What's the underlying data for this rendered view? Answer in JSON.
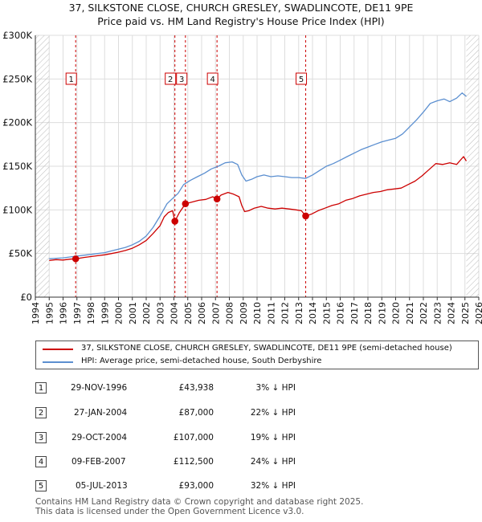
{
  "title_line1": "37, SILKSTONE CLOSE, CHURCH GRESLEY, SWADLINCOTE, DE11 9PE",
  "title_line2": "Price paid vs. HM Land Registry's House Price Index (HPI)",
  "chart_data": {
    "type": "line",
    "x_range": [
      1994,
      2026
    ],
    "ylim": [
      0,
      300000
    ],
    "y_ticks": [
      {
        "value": 0,
        "label": "£0"
      },
      {
        "value": 50000,
        "label": "£50K"
      },
      {
        "value": 100000,
        "label": "£100K"
      },
      {
        "value": 150000,
        "label": "£150K"
      },
      {
        "value": 200000,
        "label": "£200K"
      },
      {
        "value": 250000,
        "label": "£250K"
      },
      {
        "value": 300000,
        "label": "£300K"
      }
    ],
    "x_ticks": [
      "1994",
      "1995",
      "1996",
      "1997",
      "1998",
      "1999",
      "2000",
      "2001",
      "2002",
      "2003",
      "2004",
      "2005",
      "2006",
      "2007",
      "2008",
      "2009",
      "2010",
      "2011",
      "2012",
      "2013",
      "2014",
      "2015",
      "2016",
      "2017",
      "2018",
      "2019",
      "2020",
      "2021",
      "2022",
      "2023",
      "2024",
      "2025",
      "2026"
    ],
    "data_end": 2025.1,
    "series": [
      {
        "name": "37, SILKSTONE CLOSE, CHURCH GRESLEY, SWADLINCOTE, DE11 9PE (semi-detached house)",
        "color": "#cc0000",
        "points": [
          [
            1995.0,
            42000
          ],
          [
            1995.5,
            43000
          ],
          [
            1996.0,
            42500
          ],
          [
            1996.5,
            43500
          ],
          [
            1996.91,
            43938
          ],
          [
            1997.5,
            45500
          ],
          [
            1998.0,
            46500
          ],
          [
            1998.5,
            47500
          ],
          [
            1999.0,
            48500
          ],
          [
            1999.5,
            50000
          ],
          [
            2000.0,
            51500
          ],
          [
            2000.5,
            53500
          ],
          [
            2001.0,
            56000
          ],
          [
            2001.5,
            60000
          ],
          [
            2002.0,
            65000
          ],
          [
            2002.5,
            73000
          ],
          [
            2003.0,
            82000
          ],
          [
            2003.3,
            92000
          ],
          [
            2003.6,
            97000
          ],
          [
            2003.9,
            99000
          ],
          [
            2004.07,
            87000
          ],
          [
            2004.4,
            97000
          ],
          [
            2004.83,
            107000
          ],
          [
            2005.3,
            109000
          ],
          [
            2005.8,
            111000
          ],
          [
            2006.3,
            112000
          ],
          [
            2006.8,
            115000
          ],
          [
            2007.11,
            112500
          ],
          [
            2007.4,
            117000
          ],
          [
            2007.9,
            120000
          ],
          [
            2008.3,
            118000
          ],
          [
            2008.7,
            115000
          ],
          [
            2008.9,
            105000
          ],
          [
            2009.1,
            98000
          ],
          [
            2009.4,
            99000
          ],
          [
            2009.8,
            102000
          ],
          [
            2010.3,
            104000
          ],
          [
            2010.8,
            102000
          ],
          [
            2011.3,
            101000
          ],
          [
            2011.8,
            102000
          ],
          [
            2012.3,
            101000
          ],
          [
            2012.8,
            100000
          ],
          [
            2013.2,
            99000
          ],
          [
            2013.51,
            93000
          ],
          [
            2013.9,
            95000
          ],
          [
            2014.4,
            99000
          ],
          [
            2014.9,
            102000
          ],
          [
            2015.4,
            105000
          ],
          [
            2015.9,
            107000
          ],
          [
            2016.4,
            111000
          ],
          [
            2016.9,
            113000
          ],
          [
            2017.4,
            116000
          ],
          [
            2017.9,
            118000
          ],
          [
            2018.4,
            120000
          ],
          [
            2018.9,
            121000
          ],
          [
            2019.4,
            123000
          ],
          [
            2019.9,
            124000
          ],
          [
            2020.4,
            125000
          ],
          [
            2020.9,
            129000
          ],
          [
            2021.4,
            133000
          ],
          [
            2021.9,
            139000
          ],
          [
            2022.4,
            146000
          ],
          [
            2022.9,
            153000
          ],
          [
            2023.4,
            152000
          ],
          [
            2023.9,
            154000
          ],
          [
            2024.4,
            152000
          ],
          [
            2024.9,
            161000
          ],
          [
            2025.1,
            156000
          ]
        ]
      },
      {
        "name": "HPI: Average price, semi-detached house, South Derbyshire",
        "color": "#5b8fd0",
        "points": [
          [
            1995.0,
            44000
          ],
          [
            1995.5,
            44500
          ],
          [
            1996.0,
            45000
          ],
          [
            1996.5,
            46000
          ],
          [
            1997.0,
            47000
          ],
          [
            1997.5,
            48000
          ],
          [
            1998.0,
            49000
          ],
          [
            1998.5,
            50000
          ],
          [
            1999.0,
            51000
          ],
          [
            1999.5,
            53000
          ],
          [
            2000.0,
            55000
          ],
          [
            2000.5,
            57000
          ],
          [
            2001.0,
            60000
          ],
          [
            2001.5,
            64000
          ],
          [
            2002.0,
            70000
          ],
          [
            2002.5,
            80000
          ],
          [
            2003.0,
            93000
          ],
          [
            2003.5,
            107000
          ],
          [
            2003.9,
            113000
          ],
          [
            2004.3,
            119000
          ],
          [
            2004.7,
            129000
          ],
          [
            2005.2,
            134000
          ],
          [
            2005.7,
            138000
          ],
          [
            2006.2,
            142000
          ],
          [
            2006.7,
            147000
          ],
          [
            2007.2,
            150000
          ],
          [
            2007.7,
            154000
          ],
          [
            2008.2,
            155000
          ],
          [
            2008.6,
            152000
          ],
          [
            2008.9,
            140000
          ],
          [
            2009.2,
            133000
          ],
          [
            2009.6,
            135000
          ],
          [
            2010.0,
            138000
          ],
          [
            2010.5,
            140000
          ],
          [
            2011.0,
            138000
          ],
          [
            2011.5,
            139000
          ],
          [
            2012.0,
            138000
          ],
          [
            2012.5,
            137000
          ],
          [
            2013.0,
            137000
          ],
          [
            2013.5,
            136000
          ],
          [
            2014.0,
            140000
          ],
          [
            2014.5,
            145000
          ],
          [
            2015.0,
            150000
          ],
          [
            2015.5,
            153000
          ],
          [
            2016.0,
            157000
          ],
          [
            2016.5,
            161000
          ],
          [
            2017.0,
            165000
          ],
          [
            2017.5,
            169000
          ],
          [
            2018.0,
            172000
          ],
          [
            2018.5,
            175000
          ],
          [
            2019.0,
            178000
          ],
          [
            2019.5,
            180000
          ],
          [
            2020.0,
            182000
          ],
          [
            2020.5,
            187000
          ],
          [
            2021.0,
            195000
          ],
          [
            2021.5,
            203000
          ],
          [
            2022.0,
            212000
          ],
          [
            2022.5,
            222000
          ],
          [
            2023.0,
            225000
          ],
          [
            2023.5,
            227000
          ],
          [
            2023.9,
            224000
          ],
          [
            2024.4,
            228000
          ],
          [
            2024.8,
            234000
          ],
          [
            2025.1,
            230000
          ]
        ]
      }
    ],
    "sales": [
      {
        "id": "1",
        "year": 1996.91,
        "price": 43938
      },
      {
        "id": "2",
        "year": 2004.07,
        "price": 87000
      },
      {
        "id": "3",
        "year": 2004.83,
        "price": 107000
      },
      {
        "id": "4",
        "year": 2007.11,
        "price": 112500
      },
      {
        "id": "5",
        "year": 2013.51,
        "price": 93000
      }
    ]
  },
  "legend": {
    "property_label": "37, SILKSTONE CLOSE, CHURCH GRESLEY, SWADLINCOTE, DE11 9PE (semi-detached house)",
    "hpi_label": "HPI: Average price, semi-detached house, South Derbyshire"
  },
  "transactions": [
    {
      "id": "1",
      "date": "29-NOV-1996",
      "price": "£43,938",
      "hpi": "3% ↓ HPI"
    },
    {
      "id": "2",
      "date": "27-JAN-2004",
      "price": "£87,000",
      "hpi": "22% ↓ HPI"
    },
    {
      "id": "3",
      "date": "29-OCT-2004",
      "price": "£107,000",
      "hpi": "19% ↓ HPI"
    },
    {
      "id": "4",
      "date": "09-FEB-2007",
      "price": "£112,500",
      "hpi": "24% ↓ HPI"
    },
    {
      "id": "5",
      "date": "05-JUL-2013",
      "price": "£93,000",
      "hpi": "32% ↓ HPI"
    }
  ],
  "footer": {
    "line1": "Contains HM Land Registry data © Crown copyright and database right 2025.",
    "line2": "This data is licensed under the Open Government Licence v3.0."
  },
  "colors": {
    "property": "#cc0000",
    "hpi": "#5b8fd0",
    "grid": "#dddddd",
    "forecast_hatch": "#bbbbbb"
  }
}
